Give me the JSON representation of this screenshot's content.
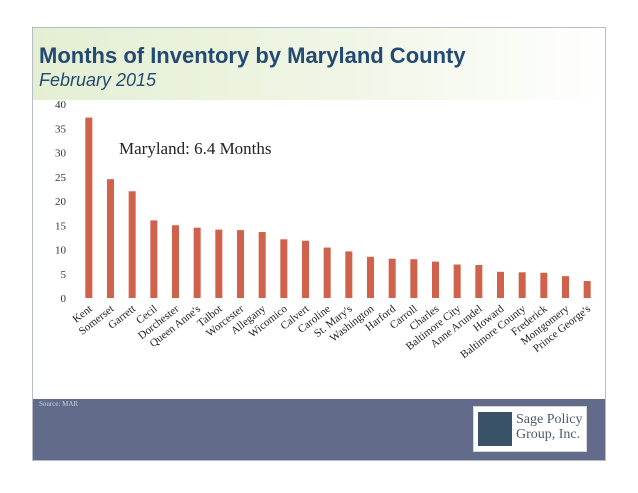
{
  "slide": {
    "title": "Months of Inventory by Maryland County",
    "subtitle": "February 2015",
    "annotation": "Maryland: 6.4 Months",
    "source": "Source: MAR",
    "logo_line1": "Sage Policy",
    "logo_line2": "Group, Inc."
  },
  "colors": {
    "bar": "#d0614a",
    "title": "#234a73",
    "footer": "#626c8a"
  },
  "chart_data": {
    "type": "bar",
    "title": "Months of Inventory by Maryland County",
    "subtitle": "February 2015",
    "annotation": "Maryland: 6.4 Months",
    "categories": [
      "Kent",
      "Somerset",
      "Garrett",
      "Cecil",
      "Dorchester",
      "Queen Anne's",
      "Talbot",
      "Worcester",
      "Allegany",
      "Wicomico",
      "Calvert",
      "Caroline",
      "St. Mary's",
      "Washington",
      "Harford",
      "Carroll",
      "Charles",
      "Baltimore City",
      "Anne Arundel",
      "Howard",
      "Baltimore County",
      "Frederick",
      "Montgomery",
      "Prince George's"
    ],
    "values": [
      37.2,
      24.5,
      22.0,
      16.0,
      15.0,
      14.5,
      14.1,
      14.0,
      13.6,
      12.1,
      11.8,
      10.4,
      9.6,
      8.5,
      8.1,
      8.0,
      7.5,
      6.9,
      6.8,
      5.4,
      5.3,
      5.2,
      4.5,
      3.5
    ],
    "yticks": [
      0,
      5,
      10,
      15,
      20,
      25,
      30,
      35,
      40
    ],
    "ylim": [
      0,
      40
    ],
    "xlabel": "",
    "ylabel": "",
    "grid": false
  }
}
